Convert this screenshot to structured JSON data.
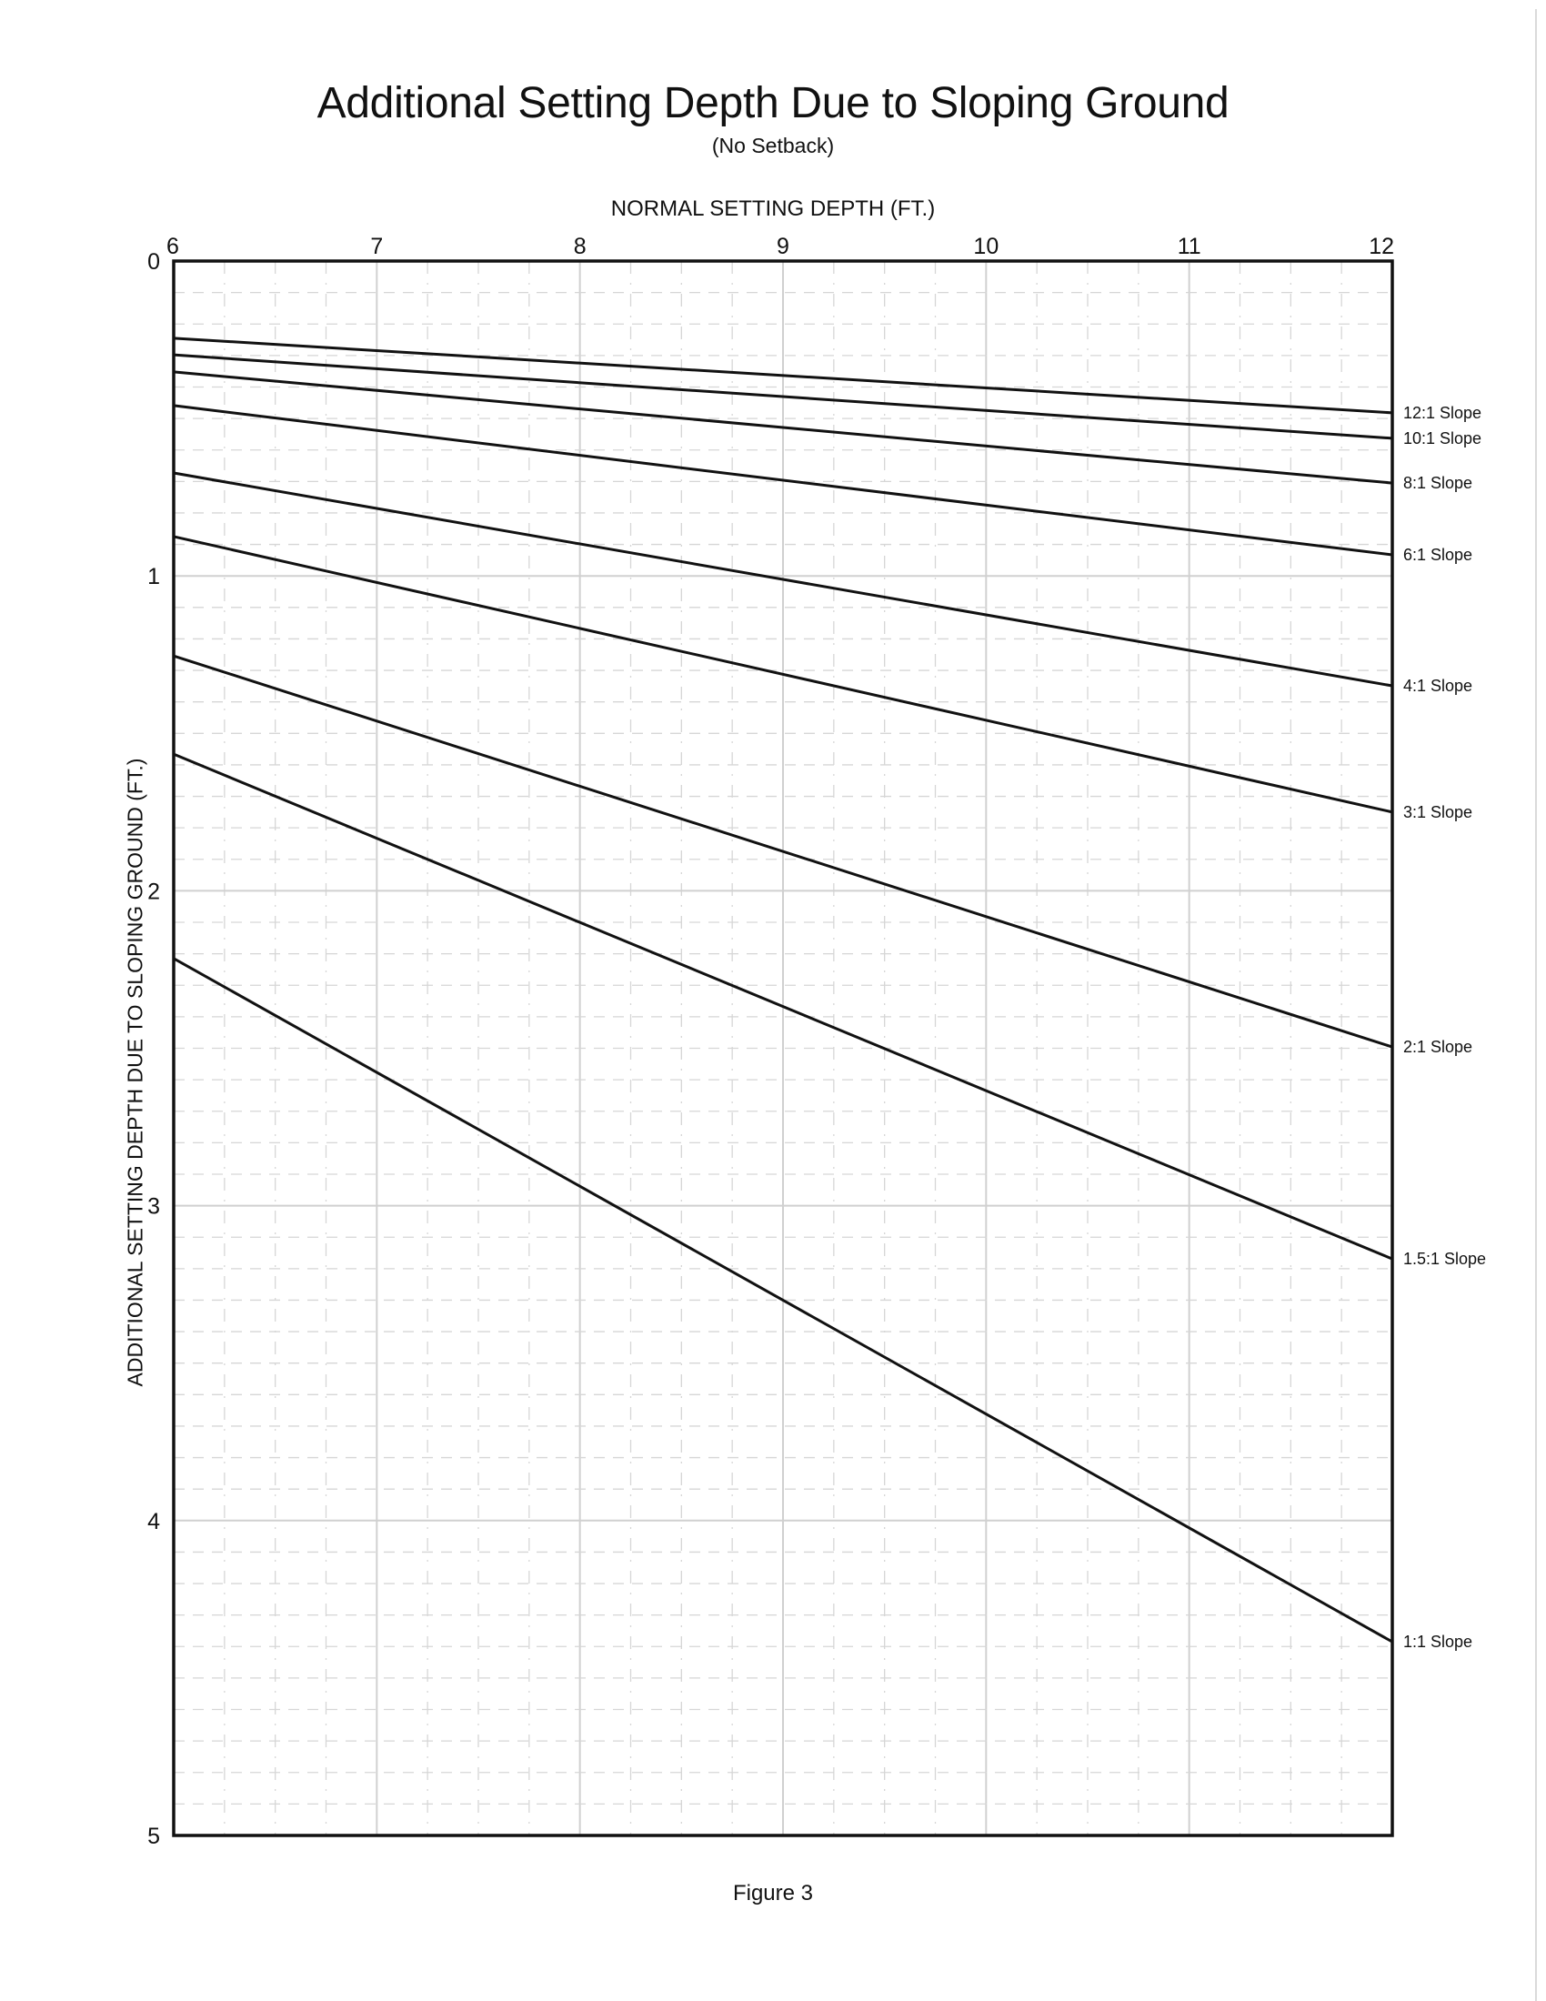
{
  "page": {
    "title": "Additional Setting Depth Due to Sloping Ground",
    "subtitle": "(No Setback)",
    "caption": "Figure 3"
  },
  "chart_data": {
    "type": "line",
    "title": "Additional Setting Depth Due to Sloping Ground",
    "subtitle": "(No Setback)",
    "xlabel": "NORMAL SETTING DEPTH (FT.)",
    "ylabel": "ADDITIONAL SETTING DEPTH DUE TO SLOPING GROUND (FT.)",
    "xaxis_position": "top",
    "yaxis_inverted": true,
    "xlim": [
      6,
      12
    ],
    "ylim": [
      0,
      5
    ],
    "x_ticks": [
      "6",
      "7",
      "8",
      "9",
      "10",
      "11",
      "12"
    ],
    "y_ticks": [
      "0",
      "1",
      "2",
      "3",
      "4",
      "5"
    ],
    "grid": {
      "on": true,
      "x_minor_step": 0.25,
      "y_minor_step": 0.1,
      "major_color": "#d0d0d0",
      "minor_color": "#d6d6d6"
    },
    "legend": "labels at right end of each line",
    "x": [
      6,
      12
    ],
    "series": [
      {
        "name": "12:1 Slope",
        "values": [
          0.245,
          0.482
        ]
      },
      {
        "name": "10:1 Slope",
        "values": [
          0.298,
          0.563
        ]
      },
      {
        "name": "8:1 Slope",
        "values": [
          0.352,
          0.705
        ]
      },
      {
        "name": "6:1 Slope",
        "values": [
          0.459,
          0.933
        ]
      },
      {
        "name": "4:1 Slope",
        "values": [
          0.673,
          1.349
        ]
      },
      {
        "name": "3:1 Slope",
        "values": [
          0.875,
          1.75
        ]
      },
      {
        "name": "2:1 Slope",
        "values": [
          1.254,
          2.496
        ]
      },
      {
        "name": "1.5:1 Slope",
        "values": [
          1.566,
          3.169
        ]
      },
      {
        "name": "1:1 Slope",
        "values": [
          2.215,
          4.385
        ]
      }
    ],
    "caption": "Figure 3"
  }
}
